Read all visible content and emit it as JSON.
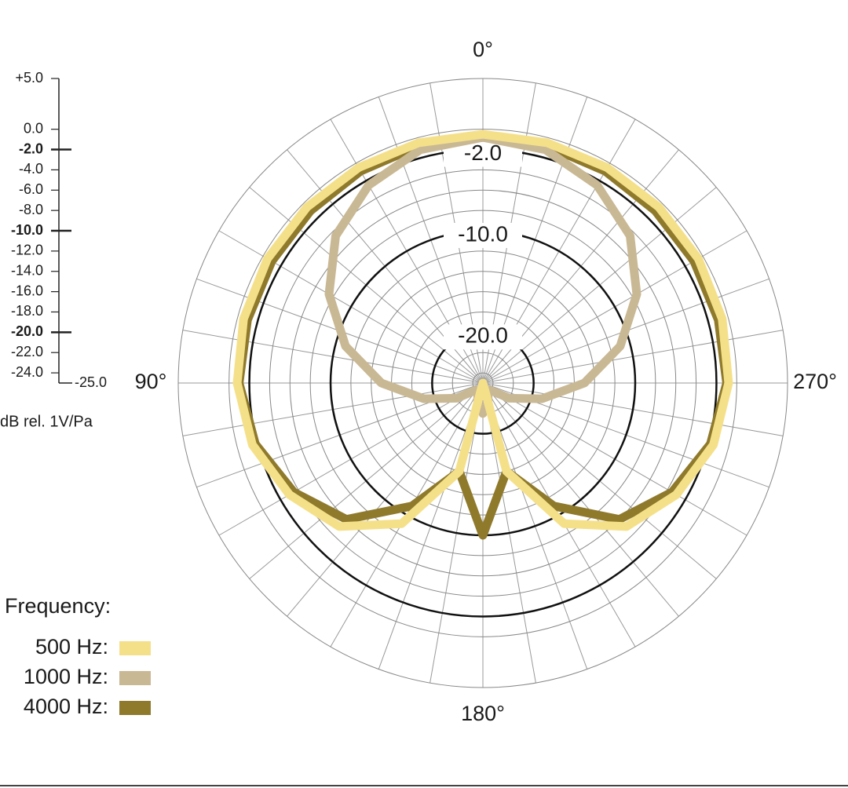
{
  "chart_data": {
    "type": "polar",
    "axis_label": "dB rel. 1V/Pa",
    "rlim": [
      -25,
      5
    ],
    "rticks": [
      {
        "value": 5,
        "label": "+5.0"
      },
      {
        "value": 0,
        "label": "0.0"
      },
      {
        "value": -2,
        "label": "-2.0",
        "major": true
      },
      {
        "value": -4,
        "label": "-4.0"
      },
      {
        "value": -6,
        "label": "-6.0"
      },
      {
        "value": -8,
        "label": "-8.0"
      },
      {
        "value": -10,
        "label": "-10.0",
        "major": true
      },
      {
        "value": -12,
        "label": "-12.0"
      },
      {
        "value": -14,
        "label": "-14.0"
      },
      {
        "value": -16,
        "label": "-16.0"
      },
      {
        "value": -18,
        "label": "-18.0"
      },
      {
        "value": -20,
        "label": "-20.0",
        "major": true
      },
      {
        "value": -22,
        "label": "-22.0"
      },
      {
        "value": -24,
        "label": "-24.0"
      },
      {
        "value": -25,
        "label": "-25.0"
      }
    ],
    "angle_labels": [
      {
        "value": 0,
        "label": "0°"
      },
      {
        "value": 90,
        "label": "90°"
      },
      {
        "value": 180,
        "label": "180°"
      },
      {
        "value": 270,
        "label": "270°"
      }
    ],
    "angles": [
      0,
      15,
      30,
      45,
      60,
      75,
      90,
      105,
      120,
      135,
      150,
      165,
      180,
      195,
      210,
      225,
      240,
      255,
      270,
      285,
      300,
      315,
      330,
      345
    ],
    "legend_title": "Frequency:",
    "series": [
      {
        "name": "4000 Hz:",
        "color": "#8f7a2c",
        "values": [
          -0.8,
          -0.8,
          -0.9,
          -1,
          -1,
          -1,
          -1,
          -1.8,
          -3.5,
          -6,
          -11,
          -16,
          -10,
          -16,
          -11,
          -6,
          -3.5,
          -1.8,
          -1,
          -1,
          -1,
          -1,
          -0.9,
          -0.8
        ]
      },
      {
        "name": "1000 Hz:",
        "color": "#c9b894",
        "values": [
          -0.8,
          -1.2,
          -2.5,
          -4.5,
          -7.5,
          -11,
          -15,
          -19,
          -22,
          -24,
          -24,
          -23,
          -22,
          -23,
          -24,
          -24,
          -22,
          -19,
          -15,
          -11,
          -7.5,
          -4.5,
          -2.5,
          -1.2
        ]
      },
      {
        "name": "500 Hz:",
        "color": "#f5e08a",
        "values": [
          -0.5,
          -0.5,
          -0.5,
          -0.5,
          -0.5,
          -0.6,
          -0.8,
          -1.5,
          -3,
          -5,
          -9,
          -16,
          -25,
          -16,
          -9,
          -5,
          -3,
          -1.5,
          -0.8,
          -0.6,
          -0.5,
          -0.5,
          -0.5,
          -0.5
        ]
      }
    ]
  }
}
